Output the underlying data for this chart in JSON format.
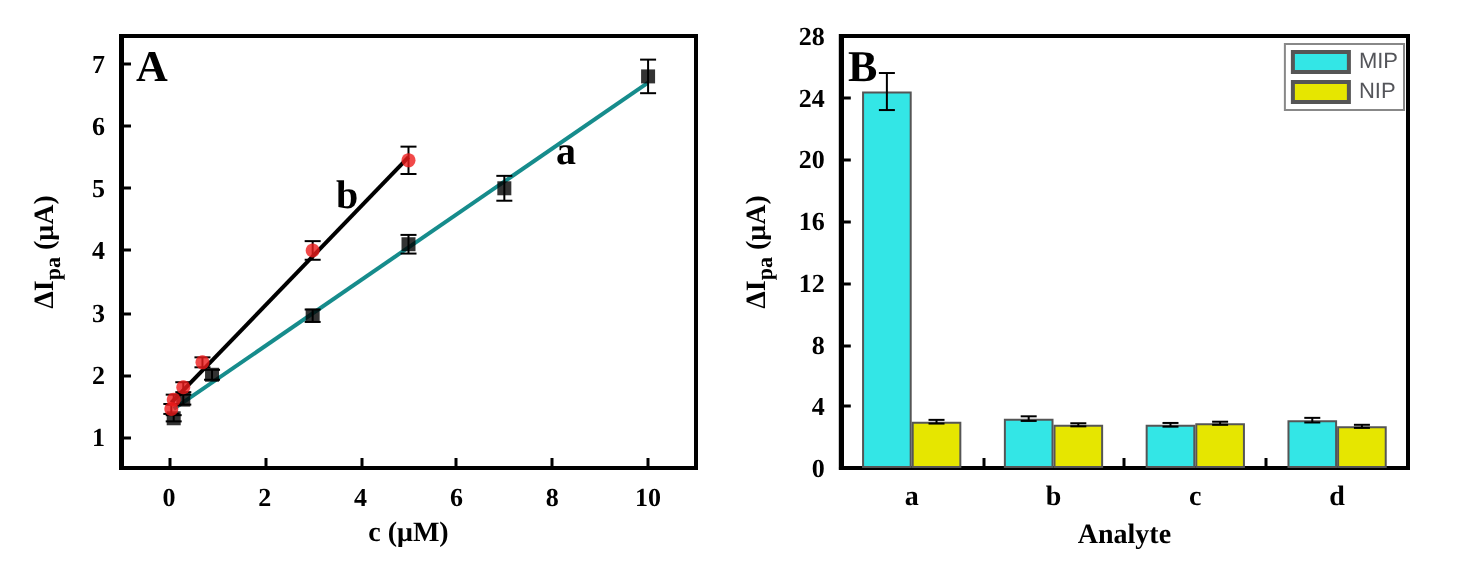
{
  "chart_data": [
    {
      "type": "scatter",
      "xlabel": "c (μM)",
      "ylabel": "ΔI$_{pa}$ (μA)",
      "xlim": [
        -1,
        11
      ],
      "ylim": [
        0.5,
        7.45
      ],
      "xticks": [
        0,
        2,
        4,
        6,
        8,
        10
      ],
      "yticks": [
        1,
        2,
        3,
        4,
        5,
        6,
        7
      ],
      "grid": false,
      "legend": false,
      "annotations": [
        "A",
        "a",
        "b"
      ],
      "series": [
        {
          "type": "line",
          "marker": "none",
          "line_style": "solid",
          "color": "#168c8c",
          "x": [
            0.1,
            10
          ],
          "values": [
            1.45,
            6.7
          ]
        },
        {
          "type": "line",
          "marker": "none",
          "line_style": "solid",
          "color": "#000000",
          "x": [
            0.05,
            5
          ],
          "values": [
            1.55,
            5.5
          ]
        },
        {
          "marker": "square",
          "color": "#000000",
          "x": [
            0.1,
            0.3,
            0.9,
            3,
            5,
            7,
            10
          ],
          "values": [
            1.3,
            1.6,
            2.0,
            2.95,
            4.1,
            5.0,
            6.8
          ],
          "errors": [
            0.05,
            0.08,
            0.08,
            0.1,
            0.15,
            0.2,
            0.27
          ]
        },
        {
          "marker": "circle",
          "color": "#ee1c1c",
          "x": [
            0.05,
            0.1,
            0.3,
            0.7,
            3,
            5
          ],
          "values": [
            1.45,
            1.6,
            1.8,
            2.2,
            4.0,
            5.45
          ],
          "errors": [
            0.08,
            0.08,
            0.08,
            0.08,
            0.15,
            0.22
          ]
        }
      ]
    },
    {
      "type": "bar",
      "xlabel": "Analyte",
      "ylabel": "ΔI$_{pa}$ (μA)",
      "categories": [
        "a",
        "b",
        "c",
        "d"
      ],
      "ylim": [
        0,
        28
      ],
      "yticks": [
        0,
        4,
        8,
        12,
        16,
        20,
        24,
        28
      ],
      "grid": false,
      "legend": "top right",
      "annotations": [
        "B"
      ],
      "series": [
        {
          "name": "MIP",
          "color": "#33e6e6",
          "values": [
            24.4,
            3.2,
            2.8,
            3.1
          ],
          "errors": [
            1.2,
            0.15,
            0.12,
            0.15
          ]
        },
        {
          "name": "NIP",
          "color": "#e6e600",
          "values": [
            3.0,
            2.8,
            2.9,
            2.7
          ],
          "errors": [
            0.12,
            0.1,
            0.1,
            0.1
          ]
        }
      ]
    }
  ]
}
